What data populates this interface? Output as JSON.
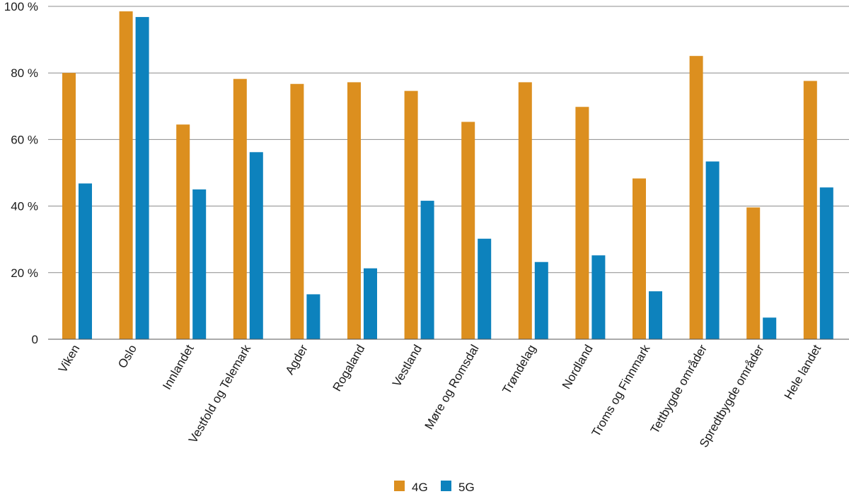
{
  "chart_data": {
    "type": "bar",
    "categories": [
      "Viken",
      "Oslo",
      "Innlandet",
      "Vestfold og Telemark",
      "Agder",
      "Rogaland",
      "Vestland",
      "Møre og Romsdal",
      "Trøndelag",
      "Nordland",
      "Troms og Finnmark",
      "Tettbygde områder",
      "Spredtbygde områder",
      "Hele landet"
    ],
    "series": [
      {
        "name": "4G",
        "color": "#dc8f1f",
        "values": [
          80,
          98.5,
          64.5,
          78.2,
          76.7,
          77.2,
          74.6,
          65.3,
          77.2,
          69.8,
          48.3,
          85.1,
          39.6,
          77.6
        ]
      },
      {
        "name": "5G",
        "color": "#0d82bd",
        "values": [
          46.8,
          96.8,
          45.0,
          56.2,
          13.5,
          21.3,
          41.6,
          30.2,
          23.2,
          25.2,
          14.4,
          53.4,
          6.5,
          45.6
        ]
      }
    ],
    "ylim": [
      0,
      100
    ],
    "yticks": [
      0,
      20,
      40,
      60,
      80,
      100
    ],
    "ytick_labels": [
      "0",
      "20 %",
      "40 %",
      "60 %",
      "80 %",
      "100 %"
    ],
    "grid": true,
    "legend_position": "bottom-center"
  }
}
